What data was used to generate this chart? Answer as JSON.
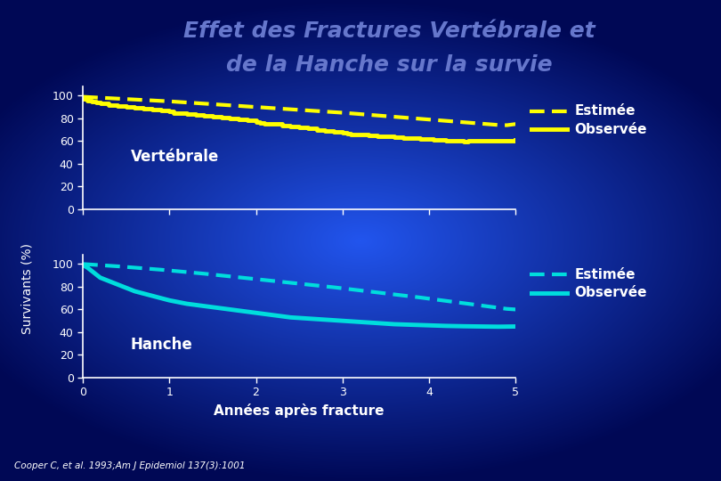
{
  "title_line1": "Effet des Fractures Vertébrale et",
  "title_line2": "de la Hanche sur la survie",
  "title_color": "#6677cc",
  "title_fontsize": 18,
  "bg_center": "#2244dd",
  "bg_edge": "#000833",
  "ylabel": "Survivants (%)",
  "xlabel": "Années après fracture",
  "footnote": "Cooper C, et al. 1993;Am J Epidemiol 137(3):1001",
  "vert_estimated_x": [
    0,
    0.1,
    0.2,
    0.3,
    0.4,
    0.5,
    0.6,
    0.7,
    0.8,
    0.9,
    1.0,
    1.1,
    1.2,
    1.3,
    1.4,
    1.5,
    1.6,
    1.7,
    1.8,
    1.9,
    2.0,
    2.1,
    2.2,
    2.3,
    2.4,
    2.5,
    2.6,
    2.7,
    2.8,
    2.9,
    3.0,
    3.1,
    3.2,
    3.3,
    3.4,
    3.5,
    3.6,
    3.7,
    3.8,
    3.9,
    4.0,
    4.1,
    4.2,
    4.3,
    4.4,
    4.5,
    4.6,
    4.7,
    4.8,
    4.9,
    5.0
  ],
  "vert_estimated_y": [
    99,
    98.6,
    98.2,
    97.8,
    97.4,
    97.0,
    96.6,
    96.2,
    95.8,
    95.4,
    95.0,
    94.5,
    94.0,
    93.5,
    93.0,
    92.5,
    92.0,
    91.5,
    91.0,
    90.5,
    90.0,
    89.5,
    89.0,
    88.5,
    88.0,
    87.5,
    87.0,
    86.5,
    86.0,
    85.5,
    85.0,
    84.4,
    83.8,
    83.2,
    82.6,
    82.0,
    81.4,
    80.8,
    80.2,
    79.6,
    79.0,
    78.4,
    77.8,
    77.2,
    76.6,
    76.0,
    75.4,
    74.8,
    74.2,
    74.0,
    75.0
  ],
  "vert_observed_x": [
    0,
    0.05,
    0.1,
    0.15,
    0.2,
    0.3,
    0.4,
    0.5,
    0.6,
    0.7,
    0.8,
    0.9,
    1.0,
    1.05,
    1.1,
    1.2,
    1.3,
    1.4,
    1.5,
    1.6,
    1.7,
    1.8,
    1.9,
    2.0,
    2.05,
    2.1,
    2.2,
    2.3,
    2.4,
    2.5,
    2.6,
    2.7,
    2.8,
    2.9,
    3.0,
    3.05,
    3.1,
    3.2,
    3.3,
    3.4,
    3.5,
    3.6,
    3.7,
    3.8,
    3.9,
    4.0,
    4.05,
    4.1,
    4.2,
    4.3,
    4.35,
    4.4,
    4.45,
    4.5,
    4.6,
    4.7,
    4.8,
    4.9,
    5.0
  ],
  "vert_observed_y": [
    97,
    96,
    95,
    94,
    93,
    92,
    91,
    90,
    89,
    88.5,
    88,
    87,
    86,
    85,
    84.5,
    84,
    83,
    82,
    81.5,
    81,
    80,
    79,
    78,
    77,
    76,
    75.5,
    75,
    74,
    73,
    72,
    71,
    70,
    69,
    68,
    67,
    66.5,
    66,
    65.5,
    65,
    64.5,
    64,
    63.5,
    63,
    62.5,
    62,
    61.5,
    61,
    60.8,
    60.5,
    60.2,
    60.0,
    59.8,
    60.0,
    60.2,
    60.3,
    60.4,
    60.5,
    60.6,
    61.0
  ],
  "hip_estimated_x": [
    0,
    0.1,
    0.2,
    0.3,
    0.4,
    0.5,
    0.6,
    0.7,
    0.8,
    0.9,
    1.0,
    1.1,
    1.2,
    1.3,
    1.4,
    1.5,
    1.6,
    1.7,
    1.8,
    1.9,
    2.0,
    2.1,
    2.2,
    2.3,
    2.4,
    2.5,
    2.6,
    2.7,
    2.8,
    2.9,
    3.0,
    3.1,
    3.2,
    3.3,
    3.4,
    3.5,
    3.6,
    3.7,
    3.8,
    3.9,
    4.0,
    4.1,
    4.2,
    4.3,
    4.4,
    4.5,
    4.6,
    4.7,
    4.8,
    4.9,
    5.0
  ],
  "hip_estimated_y": [
    100,
    99.5,
    99.0,
    98.5,
    98.0,
    97.4,
    96.8,
    96.2,
    95.6,
    95.0,
    94.3,
    93.6,
    92.9,
    92.2,
    91.5,
    90.7,
    89.9,
    89.1,
    88.3,
    87.5,
    86.7,
    85.9,
    85.1,
    84.3,
    83.5,
    82.7,
    81.9,
    81.1,
    80.3,
    79.5,
    78.6,
    77.7,
    76.8,
    75.9,
    75.0,
    74.1,
    73.2,
    72.3,
    71.4,
    70.5,
    69.5,
    68.5,
    67.5,
    66.5,
    65.5,
    64.5,
    63.5,
    62.5,
    61.5,
    60.5,
    60.0
  ],
  "hip_observed_x": [
    0,
    0.05,
    0.1,
    0.15,
    0.2,
    0.3,
    0.4,
    0.5,
    0.6,
    0.7,
    0.8,
    0.9,
    1.0,
    1.2,
    1.4,
    1.6,
    1.8,
    2.0,
    2.2,
    2.4,
    2.6,
    2.8,
    3.0,
    3.2,
    3.4,
    3.6,
    3.8,
    4.0,
    4.2,
    4.4,
    4.6,
    4.8,
    5.0
  ],
  "hip_observed_y": [
    99,
    97,
    94,
    91,
    88,
    85,
    82,
    79,
    76,
    74,
    72,
    70,
    68,
    65,
    63,
    61,
    59,
    57,
    55,
    53,
    52,
    51,
    50,
    49,
    48,
    47,
    46.5,
    46,
    45.5,
    45.2,
    45.0,
    44.8,
    45.0
  ],
  "vert_color": "#ffff00",
  "hip_color": "#00dddd",
  "label_estimated": "Estimée",
  "label_observed": "Observée",
  "label_vert": "Vertébrale",
  "label_hip": "Hanche"
}
